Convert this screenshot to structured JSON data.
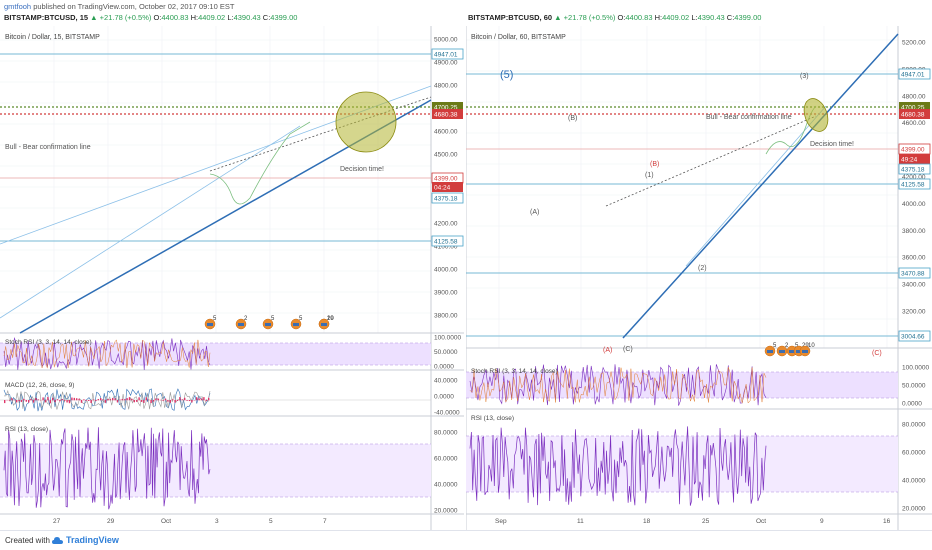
{
  "header": {
    "author": "gmtfooh",
    "published": "published on TradingView.com, October 02, 2017 09:10 EST"
  },
  "footer": {
    "created_with": "Created with",
    "brand": "TradingView"
  },
  "colors": {
    "grid": "#edf0f5",
    "axis_text": "#555555",
    "blue_line": "#2e6eb5",
    "light_blue": "#8cc0e8",
    "cyan_level": "#4aa3c8",
    "red_level": "#e26464",
    "olive": "#a8b020",
    "osc_fill": "#ede0ff",
    "osc_line": "#7b2fbf",
    "candle_up": "#3a8a55",
    "candle_down": "#b8433a",
    "wave_red": "#d23c3c"
  },
  "panels": [
    {
      "id": "left",
      "symbol_line": {
        "symbol": "BITSTAMP:BTCUSD, 15",
        "change": "+21.78 (+0.5%)",
        "o_label": "O:",
        "o": "4400.83",
        "h_label": "H:",
        "h": "4409.02",
        "l_label": "L:",
        "l": "4390.43",
        "c_label": "C:",
        "c": "4399.00"
      },
      "title": "Bitcoin / Dollar, 15, BITSTAMP",
      "price_axis": [
        "5000.00",
        "4900.00",
        "4800.00",
        "4700.00",
        "4600.00",
        "4500.00",
        "4400.00",
        "4300.00",
        "4200.00",
        "4100.00",
        "4000.00",
        "3900.00",
        "3800.00"
      ],
      "price_badges": [
        {
          "text": "4947.01",
          "kind": "cyan"
        },
        {
          "text": "4700.25",
          "kind": "olive"
        },
        {
          "text": "4680.38",
          "kind": "red"
        },
        {
          "text": "4399.00",
          "kind": "red-outline"
        },
        {
          "text": "04:24",
          "kind": "red"
        },
        {
          "text": "4375.18",
          "kind": "cyan"
        },
        {
          "text": "4125.58",
          "kind": "cyan"
        }
      ],
      "annotations": {
        "bull_bear": "Bull - Bear confirmation line",
        "decision": "Decision time!"
      },
      "event_badges": [
        "5",
        "2",
        "5",
        "5",
        "29",
        "10"
      ],
      "stoch_label": "Stoch RSI (3, 3, 14, 14, close)",
      "stoch_axis": [
        "100.0000",
        "50.0000",
        "0.0000"
      ],
      "macd_label": "MACD (12, 26, close, 9)",
      "macd_axis": [
        "40.0000",
        "0.0000",
        "-40.0000"
      ],
      "rsi_label": "RSI (13, close)",
      "rsi_axis": [
        "80.0000",
        "60.0000",
        "40.0000",
        "20.0000"
      ],
      "time_axis": [
        "27",
        "29",
        "Oct",
        "3",
        "5",
        "7"
      ]
    },
    {
      "id": "right",
      "symbol_line": {
        "symbol": "BITSTAMP:BTCUSD, 60",
        "change": "+21.78 (+0.5%)",
        "o_label": "O:",
        "o": "4400.83",
        "h_label": "H:",
        "h": "4409.02",
        "l_label": "L:",
        "l": "4390.43",
        "c_label": "C:",
        "c": "4399.00"
      },
      "title": "Bitcoin / Dollar, 60, BITSTAMP",
      "price_axis": [
        "5200.00",
        "5000.00",
        "4800.00",
        "4600.00",
        "4400.00",
        "4200.00",
        "4000.00",
        "3800.00",
        "3600.00",
        "3400.00",
        "3200.00"
      ],
      "price_badges": [
        {
          "text": "4947.01",
          "kind": "cyan"
        },
        {
          "text": "4700.25",
          "kind": "olive"
        },
        {
          "text": "4680.38",
          "kind": "red"
        },
        {
          "text": "4399.00",
          "kind": "red-outline"
        },
        {
          "text": "49:24",
          "kind": "red"
        },
        {
          "text": "4375.18",
          "kind": "cyan"
        },
        {
          "text": "4125.58",
          "kind": "cyan"
        },
        {
          "text": "3470.88",
          "kind": "cyan"
        },
        {
          "text": "3004.66",
          "kind": "cyan"
        }
      ],
      "annotations": {
        "bull_bear": "Bull - Bear confirmation line",
        "decision": "Decision time!"
      },
      "wave_labels": {
        "w5": "(5)",
        "A": "(A)",
        "B": "(B)",
        "C": "(C)",
        "A_red": "(A)",
        "B_red": "(B)",
        "C_red": "(C)",
        "w1": "(1)",
        "w2": "(2)",
        "w3": "(3)"
      },
      "event_badges": [
        "5",
        "2",
        "5",
        "29",
        "10"
      ],
      "stoch_label": "Stoch RSI (3, 3, 14, 14, close)",
      "stoch_axis": [
        "100.0000",
        "50.0000",
        "0.0000"
      ],
      "rsi_label": "RSI (13, close)",
      "rsi_axis": [
        "80.0000",
        "60.0000",
        "40.0000",
        "20.0000"
      ],
      "time_axis": [
        "Sep",
        "11",
        "18",
        "25",
        "Oct",
        "9",
        "16"
      ]
    }
  ],
  "chart_data": [
    {
      "type": "candlestick",
      "title": "Bitcoin / Dollar, 15, BITSTAMP",
      "ylim": [
        3740,
        5060
      ],
      "levels": [
        4947.01,
        4700.25,
        4680.38,
        4399.0,
        4375.18,
        4125.58
      ],
      "indicators": [
        "Stoch RSI (3, 3, 14, 14, close)",
        "MACD (12, 26, close, 9)",
        "RSI (13, close)"
      ]
    },
    {
      "type": "candlestick",
      "title": "Bitcoin / Dollar, 60, BITSTAMP",
      "ylim": [
        3000,
        5300
      ],
      "levels": [
        4947.01,
        4700.25,
        4680.38,
        4399.0,
        4375.18,
        4125.58,
        3470.88,
        3004.66
      ],
      "indicators": [
        "Stoch RSI (3, 3, 14, 14, close)",
        "RSI (13, close)"
      ]
    }
  ]
}
